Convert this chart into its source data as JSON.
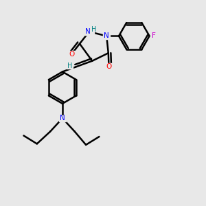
{
  "background_color": "#e8e8e8",
  "atom_colors": {
    "C": "#000000",
    "N": "#0000ff",
    "O": "#ff0000",
    "F": "#cc00cc",
    "H": "#008080"
  },
  "figsize": [
    3.0,
    3.0
  ],
  "dpi": 100,
  "xlim": [
    0,
    10
  ],
  "ylim": [
    0,
    10
  ]
}
